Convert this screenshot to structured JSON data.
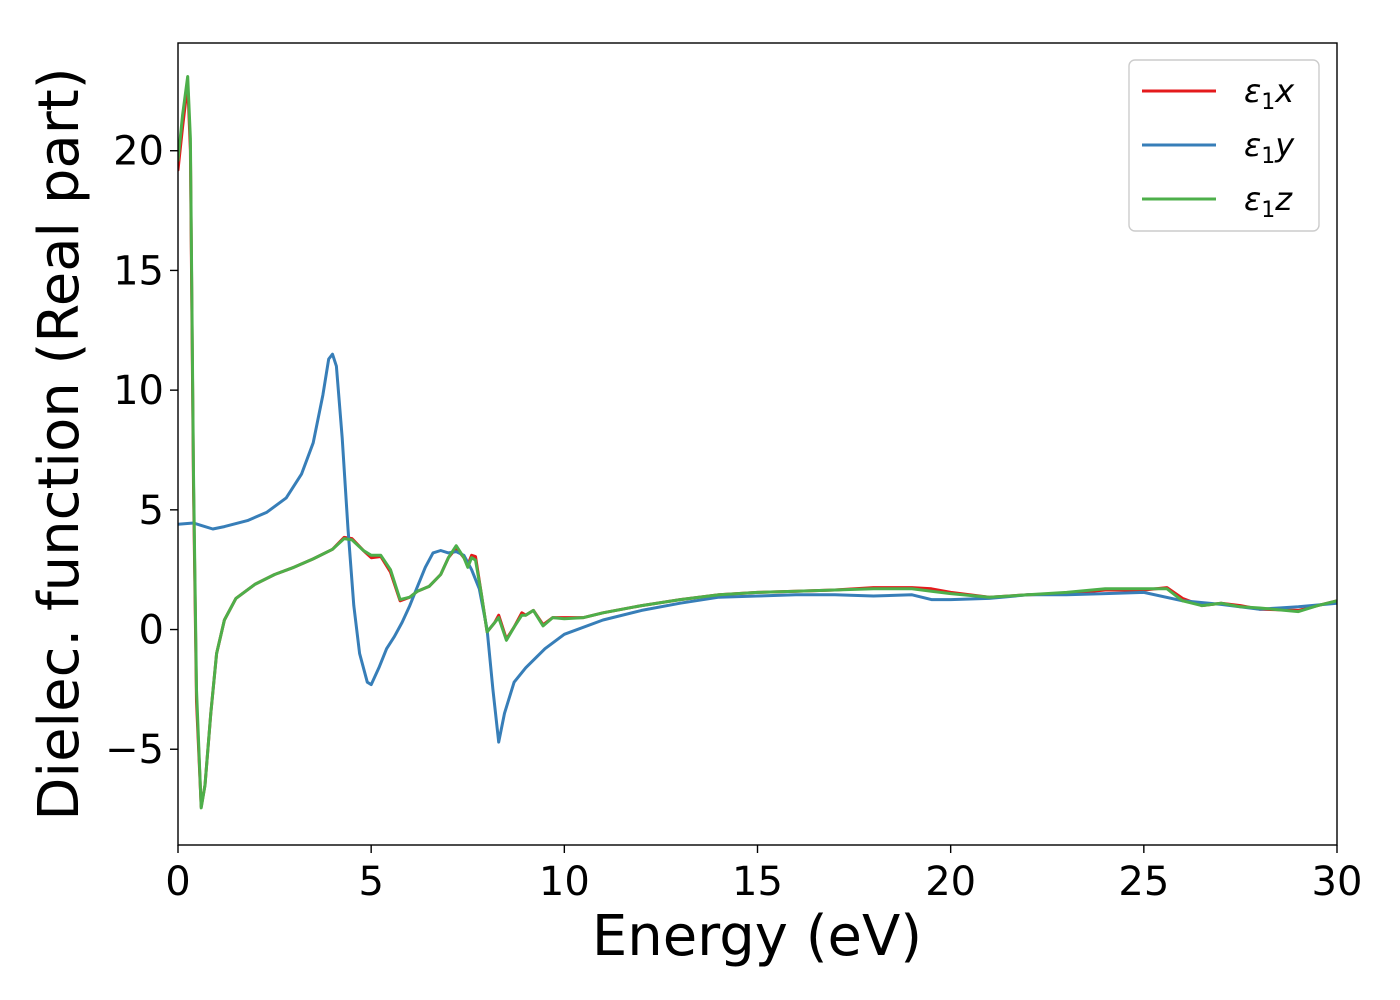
{
  "chart_data": {
    "type": "line",
    "title": "",
    "xlabel": "Energy (eV)",
    "ylabel": "Dielec. function (Real part)",
    "xlim": [
      0,
      30
    ],
    "ylim": [
      -9,
      24.5
    ],
    "x_ticks": [
      {
        "value": 0,
        "label": "0"
      },
      {
        "value": 5,
        "label": "5"
      },
      {
        "value": 10,
        "label": "10"
      },
      {
        "value": 15,
        "label": "15"
      },
      {
        "value": 20,
        "label": "20"
      },
      {
        "value": 25,
        "label": "25"
      },
      {
        "value": 30,
        "label": "30"
      }
    ],
    "y_ticks": [
      {
        "value": -5,
        "label": "−5"
      },
      {
        "value": 0,
        "label": "0"
      },
      {
        "value": 5,
        "label": "5"
      },
      {
        "value": 10,
        "label": "10"
      },
      {
        "value": 15,
        "label": "15"
      },
      {
        "value": 20,
        "label": "20"
      }
    ],
    "grid": false,
    "legend_position": "top-right",
    "series": [
      {
        "name": "ε₁x",
        "legend_base": "ε",
        "legend_sub": "1",
        "legend_var": "x",
        "color": "#e41a1c",
        "points": [
          [
            0.0,
            19.2
          ],
          [
            0.12,
            21.0
          ],
          [
            0.25,
            22.8
          ],
          [
            0.32,
            20.0
          ],
          [
            0.4,
            6.0
          ],
          [
            0.48,
            -3.0
          ],
          [
            0.6,
            -7.4
          ],
          [
            0.7,
            -6.5
          ],
          [
            0.85,
            -3.5
          ],
          [
            1.0,
            -1.0
          ],
          [
            1.2,
            0.4
          ],
          [
            1.5,
            1.3
          ],
          [
            2.0,
            1.9
          ],
          [
            2.5,
            2.3
          ],
          [
            3.0,
            2.6
          ],
          [
            3.5,
            2.95
          ],
          [
            4.0,
            3.35
          ],
          [
            4.3,
            3.85
          ],
          [
            4.5,
            3.8
          ],
          [
            4.8,
            3.3
          ],
          [
            5.0,
            3.0
          ],
          [
            5.25,
            3.05
          ],
          [
            5.5,
            2.4
          ],
          [
            5.75,
            1.2
          ],
          [
            6.0,
            1.35
          ],
          [
            6.2,
            1.6
          ],
          [
            6.5,
            1.8
          ],
          [
            6.8,
            2.3
          ],
          [
            7.0,
            3.0
          ],
          [
            7.2,
            3.4
          ],
          [
            7.4,
            3.0
          ],
          [
            7.5,
            2.7
          ],
          [
            7.6,
            3.1
          ],
          [
            7.7,
            3.05
          ],
          [
            7.85,
            1.5
          ],
          [
            8.0,
            -0.1
          ],
          [
            8.2,
            0.3
          ],
          [
            8.3,
            0.6
          ],
          [
            8.5,
            -0.4
          ],
          [
            8.7,
            0.1
          ],
          [
            8.9,
            0.7
          ],
          [
            9.0,
            0.6
          ],
          [
            9.2,
            0.8
          ],
          [
            9.45,
            0.2
          ],
          [
            9.7,
            0.5
          ],
          [
            10.0,
            0.5
          ],
          [
            10.5,
            0.5
          ],
          [
            11.0,
            0.7
          ],
          [
            12.0,
            1.0
          ],
          [
            13.0,
            1.25
          ],
          [
            14.0,
            1.45
          ],
          [
            15.0,
            1.55
          ],
          [
            16.0,
            1.6
          ],
          [
            17.0,
            1.65
          ],
          [
            18.0,
            1.75
          ],
          [
            19.0,
            1.75
          ],
          [
            19.5,
            1.7
          ],
          [
            20.0,
            1.55
          ],
          [
            21.0,
            1.35
          ],
          [
            22.0,
            1.45
          ],
          [
            23.0,
            1.5
          ],
          [
            24.0,
            1.65
          ],
          [
            25.0,
            1.65
          ],
          [
            25.6,
            1.75
          ],
          [
            26.0,
            1.3
          ],
          [
            26.5,
            1.0
          ],
          [
            27.0,
            1.1
          ],
          [
            27.5,
            1.0
          ],
          [
            28.0,
            0.85
          ],
          [
            29.0,
            0.8
          ],
          [
            29.5,
            1.0
          ],
          [
            30.0,
            1.2
          ]
        ]
      },
      {
        "name": "ε₁y",
        "legend_base": "ε",
        "legend_sub": "1",
        "legend_var": "y",
        "color": "#377eb8",
        "points": [
          [
            0.0,
            4.4
          ],
          [
            0.4,
            4.45
          ],
          [
            0.6,
            4.35
          ],
          [
            0.9,
            4.2
          ],
          [
            1.2,
            4.3
          ],
          [
            1.8,
            4.55
          ],
          [
            2.3,
            4.9
          ],
          [
            2.8,
            5.5
          ],
          [
            3.2,
            6.5
          ],
          [
            3.5,
            7.8
          ],
          [
            3.75,
            9.8
          ],
          [
            3.9,
            11.3
          ],
          [
            4.0,
            11.5
          ],
          [
            4.1,
            11.0
          ],
          [
            4.25,
            8.0
          ],
          [
            4.4,
            4.2
          ],
          [
            4.55,
            1.0
          ],
          [
            4.7,
            -1.0
          ],
          [
            4.9,
            -2.2
          ],
          [
            5.0,
            -2.3
          ],
          [
            5.2,
            -1.6
          ],
          [
            5.4,
            -0.8
          ],
          [
            5.6,
            -0.3
          ],
          [
            5.8,
            0.3
          ],
          [
            6.0,
            1.0
          ],
          [
            6.2,
            1.8
          ],
          [
            6.4,
            2.6
          ],
          [
            6.6,
            3.2
          ],
          [
            6.8,
            3.3
          ],
          [
            7.0,
            3.2
          ],
          [
            7.2,
            3.25
          ],
          [
            7.4,
            3.1
          ],
          [
            7.6,
            2.5
          ],
          [
            7.8,
            1.7
          ],
          [
            8.0,
            0.0
          ],
          [
            8.15,
            -2.5
          ],
          [
            8.3,
            -4.7
          ],
          [
            8.45,
            -3.5
          ],
          [
            8.7,
            -2.2
          ],
          [
            9.0,
            -1.6
          ],
          [
            9.5,
            -0.8
          ],
          [
            10.0,
            -0.2
          ],
          [
            11.0,
            0.4
          ],
          [
            12.0,
            0.8
          ],
          [
            13.0,
            1.1
          ],
          [
            14.0,
            1.35
          ],
          [
            15.0,
            1.4
          ],
          [
            16.0,
            1.45
          ],
          [
            17.0,
            1.45
          ],
          [
            18.0,
            1.4
          ],
          [
            19.0,
            1.45
          ],
          [
            19.5,
            1.25
          ],
          [
            20.0,
            1.25
          ],
          [
            21.0,
            1.3
          ],
          [
            22.0,
            1.45
          ],
          [
            23.0,
            1.45
          ],
          [
            24.0,
            1.5
          ],
          [
            25.0,
            1.55
          ],
          [
            26.0,
            1.2
          ],
          [
            27.0,
            1.05
          ],
          [
            28.0,
            0.85
          ],
          [
            28.5,
            0.9
          ],
          [
            29.0,
            0.95
          ],
          [
            30.0,
            1.1
          ]
        ]
      },
      {
        "name": "ε₁z",
        "legend_base": "ε",
        "legend_sub": "1",
        "legend_var": "z",
        "color": "#4daf4a",
        "points": [
          [
            0.0,
            19.6
          ],
          [
            0.12,
            21.5
          ],
          [
            0.25,
            23.1
          ],
          [
            0.32,
            20.5
          ],
          [
            0.4,
            6.5
          ],
          [
            0.48,
            -2.5
          ],
          [
            0.6,
            -7.45
          ],
          [
            0.7,
            -6.5
          ],
          [
            0.85,
            -3.5
          ],
          [
            1.0,
            -1.0
          ],
          [
            1.2,
            0.4
          ],
          [
            1.5,
            1.3
          ],
          [
            2.0,
            1.9
          ],
          [
            2.5,
            2.3
          ],
          [
            3.0,
            2.6
          ],
          [
            3.5,
            2.95
          ],
          [
            4.0,
            3.35
          ],
          [
            4.3,
            3.8
          ],
          [
            4.5,
            3.75
          ],
          [
            4.8,
            3.3
          ],
          [
            5.0,
            3.1
          ],
          [
            5.25,
            3.1
          ],
          [
            5.5,
            2.5
          ],
          [
            5.75,
            1.25
          ],
          [
            6.0,
            1.35
          ],
          [
            6.2,
            1.6
          ],
          [
            6.5,
            1.8
          ],
          [
            6.8,
            2.3
          ],
          [
            7.0,
            3.0
          ],
          [
            7.2,
            3.5
          ],
          [
            7.4,
            3.0
          ],
          [
            7.5,
            2.6
          ],
          [
            7.6,
            3.0
          ],
          [
            7.7,
            2.9
          ],
          [
            7.85,
            1.5
          ],
          [
            8.0,
            -0.1
          ],
          [
            8.2,
            0.3
          ],
          [
            8.3,
            0.5
          ],
          [
            8.5,
            -0.45
          ],
          [
            8.7,
            0.1
          ],
          [
            8.9,
            0.6
          ],
          [
            9.0,
            0.6
          ],
          [
            9.2,
            0.8
          ],
          [
            9.45,
            0.15
          ],
          [
            9.7,
            0.5
          ],
          [
            10.0,
            0.45
          ],
          [
            10.5,
            0.5
          ],
          [
            11.0,
            0.7
          ],
          [
            12.0,
            1.0
          ],
          [
            13.0,
            1.25
          ],
          [
            14.0,
            1.45
          ],
          [
            15.0,
            1.55
          ],
          [
            16.0,
            1.6
          ],
          [
            17.0,
            1.65
          ],
          [
            18.0,
            1.7
          ],
          [
            19.0,
            1.7
          ],
          [
            19.5,
            1.6
          ],
          [
            20.0,
            1.5
          ],
          [
            21.0,
            1.35
          ],
          [
            22.0,
            1.45
          ],
          [
            23.0,
            1.55
          ],
          [
            24.0,
            1.7
          ],
          [
            25.0,
            1.7
          ],
          [
            25.6,
            1.7
          ],
          [
            26.0,
            1.2
          ],
          [
            26.5,
            1.0
          ],
          [
            27.0,
            1.1
          ],
          [
            27.5,
            0.95
          ],
          [
            28.0,
            0.9
          ],
          [
            29.0,
            0.75
          ],
          [
            29.5,
            1.0
          ],
          [
            30.0,
            1.2
          ]
        ]
      }
    ]
  }
}
